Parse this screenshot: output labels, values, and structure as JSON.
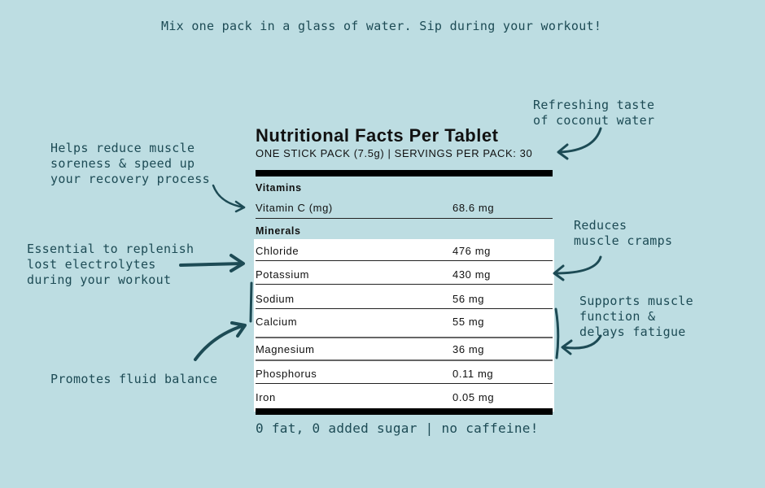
{
  "instruction": "Mix one pack in a glass of water. Sip during your workout!",
  "label": {
    "title": "Nutritional Facts Per Tablet",
    "subtitle": "ONE STICK PACK (7.5g) | SERVINGS PER PACK: 30",
    "vitamins_heading": "Vitamins",
    "vitamins": [
      {
        "name": "Vitamin C (mg)",
        "value": "68.6 mg"
      }
    ],
    "minerals_heading": "Minerals",
    "minerals": [
      {
        "name": "Chloride",
        "value": "476 mg"
      },
      {
        "name": "Potassium",
        "value": "430 mg"
      },
      {
        "name": "Sodium",
        "value": "56 mg"
      },
      {
        "name": "Calcium",
        "value": "55 mg"
      },
      {
        "name": "Magnesium",
        "value": "36 mg"
      },
      {
        "name": "Phosphorus",
        "value": "0.11 mg"
      },
      {
        "name": "Iron",
        "value": "0.05 mg"
      }
    ]
  },
  "annotations": {
    "coconut": "Refreshing taste\nof coconut water",
    "recovery": "Helps reduce muscle\nsoreness & speed up\nyour recovery process",
    "electrolytes": "Essential to replenish\nlost electrolytes\nduring your workout",
    "fluid": "Promotes fluid balance",
    "cramps": "Reduces\nmuscle cramps",
    "fatigue": "Supports muscle\nfunction &\ndelays fatigue"
  },
  "footer": "0 fat, 0 added sugar | no caffeine!",
  "colors": {
    "background": "#bddde2",
    "accent": "#1d4b55"
  }
}
